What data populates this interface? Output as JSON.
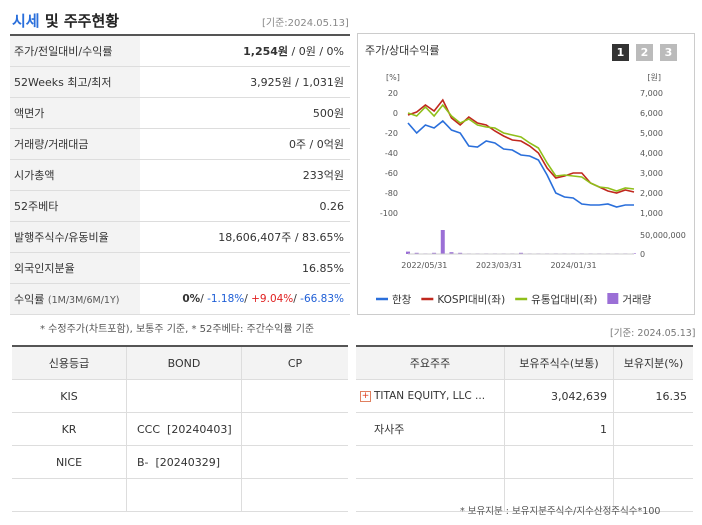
{
  "header": {
    "title_part1": "시세",
    "title_part2": "및 주주현황",
    "date_label": "[기준:2024.05.13]"
  },
  "info_rows": [
    {
      "label": "주가/전일대비/수익률",
      "v1": "1,254원",
      "v2": " / 0원 / 0%"
    },
    {
      "label": "52Weeks 최고/최저",
      "value": "3,925원 / 1,031원"
    },
    {
      "label": "액면가",
      "value": "500원"
    },
    {
      "label": "거래량/거래대금",
      "value": "0주 / 0억원"
    },
    {
      "label": "시가총액",
      "value": "233억원"
    },
    {
      "label": "52주베타",
      "value": "0.26"
    },
    {
      "label": "발행주식수/유동비율",
      "value": "18,606,407주 / 83.65%"
    },
    {
      "label": "외국인지분율",
      "value": "16.85%"
    },
    {
      "label": "수익률",
      "label_small": "(1M/3M/6M/1Y)",
      "r1": "0%",
      "r2": "-1.18%",
      "r3": "+9.04%",
      "r4": "-66.83%"
    }
  ],
  "notes": {
    "left": "* 수정주가(차트포함), 보통주 기준, * 52주베타: 주간수익률 기준",
    "right_date": "[기준: 2024.05.13]",
    "bottom": "* 보유지분 : 보유지분주식수/지수산정주식수*100"
  },
  "chart_panel": {
    "title": "주가/상대수익률",
    "buttons": [
      "1",
      "2",
      "3"
    ]
  },
  "chart_data": {
    "type": "line",
    "left_axis_unit": "[%]",
    "right_axis_unit": "[원]",
    "left_ticks": [
      "20",
      "0",
      "-20",
      "-40",
      "-60",
      "-80",
      "-100"
    ],
    "right_ticks": [
      "7,000",
      "6,000",
      "5,000",
      "4,000",
      "3,000",
      "2,000",
      "1,000"
    ],
    "volume_tick": "50,000,000",
    "volume_zero": "0",
    "x_labels": [
      "2022/05/31",
      "2023/03/31",
      "2024/01/31"
    ],
    "ylim_left": [
      -100,
      20
    ],
    "ylim_right": [
      1000,
      7000
    ],
    "series": [
      {
        "name": "한창",
        "color": "#2a6fdb",
        "values": [
          -10,
          -20,
          -12,
          -15,
          -8,
          -17,
          -20,
          -33,
          -34,
          -28,
          -30,
          -36,
          -37,
          -42,
          -43,
          -47,
          -62,
          -80,
          -84,
          -85,
          -91,
          -92,
          -92,
          -91,
          -94,
          -92,
          -92
        ]
      },
      {
        "name": "KOSPI대비(좌)",
        "color": "#c0281e",
        "values": [
          -2,
          1,
          8,
          2,
          13,
          -5,
          -12,
          -4,
          -10,
          -12,
          -18,
          -23,
          -27,
          -28,
          -33,
          -40,
          -55,
          -65,
          -63,
          -60,
          -60,
          -70,
          -74,
          -78,
          -80,
          -77,
          -79
        ]
      },
      {
        "name": "유통업대비(좌)",
        "color": "#8fbf1a",
        "values": [
          0,
          -3,
          6,
          -3,
          8,
          -3,
          -10,
          -6,
          -12,
          -14,
          -15,
          -20,
          -22,
          -24,
          -30,
          -35,
          -50,
          -63,
          -62,
          -63,
          -64,
          -70,
          -74,
          -75,
          -78,
          -75,
          -76
        ]
      }
    ],
    "volume": {
      "name": "거래량",
      "color": "#9b6fd6",
      "values": [
        4,
        2,
        1,
        2,
        40,
        3,
        2,
        1,
        1,
        1,
        1,
        1,
        1,
        2,
        1,
        1,
        1,
        1,
        1,
        1,
        1,
        1,
        1,
        1,
        1,
        1,
        1
      ]
    }
  },
  "credit_table": {
    "headers": [
      "신용등급",
      "BOND",
      "CP"
    ],
    "rows": [
      [
        "KIS",
        "",
        ""
      ],
      [
        "KR",
        "CCC  [20240403]",
        ""
      ],
      [
        "NICE",
        "B-  [20240329]",
        ""
      ],
      [
        "",
        "",
        ""
      ]
    ]
  },
  "holder_table": {
    "headers": [
      "주요주주",
      "보유주식수(보통)",
      "보유지분(%)"
    ],
    "rows": [
      [
        "TITAN EQUITY, LLC ...",
        "3,042,639",
        "16.35"
      ],
      [
        "자사주",
        "1",
        ""
      ],
      [
        "",
        "",
        ""
      ],
      [
        "",
        "",
        ""
      ]
    ]
  }
}
